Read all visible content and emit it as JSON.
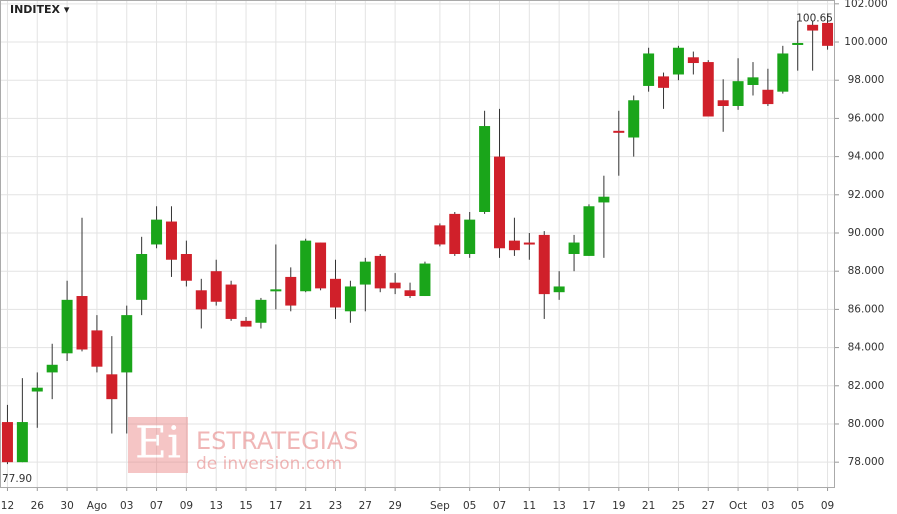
{
  "chart_data": {
    "type": "candlestick",
    "title": "INDITEX ▾",
    "watermark": {
      "logo": "Ei",
      "line1": "ESTRATEGIAS",
      "line2": "de inversion.com"
    },
    "categories": [
      "12",
      null,
      "26",
      null,
      "30",
      null,
      "Ago",
      null,
      "03",
      null,
      "07",
      null,
      "09",
      null,
      "13",
      null,
      "15",
      null,
      "17",
      null,
      "21",
      null,
      "23",
      null,
      "27",
      null,
      "29",
      null,
      null,
      "Sep",
      null,
      "05",
      null,
      "07",
      null,
      "11",
      null,
      "13",
      null,
      "17",
      null,
      "19",
      null,
      "21",
      null,
      "25",
      null,
      "27",
      null,
      "Oct",
      null,
      "03",
      null,
      "05",
      null,
      "09"
    ],
    "open": [
      80.1,
      78.0,
      81.7,
      82.7,
      83.7,
      86.7,
      84.9,
      82.6,
      82.7,
      86.5,
      89.4,
      90.6,
      88.9,
      87.0,
      88.0,
      87.3,
      85.4,
      85.3,
      86.95,
      87.7,
      86.95,
      89.5,
      87.6,
      85.9,
      87.3,
      88.8,
      87.4,
      87.0,
      86.7,
      90.4,
      91.0,
      88.9,
      91.1,
      94.0,
      89.6,
      89.5,
      89.9,
      86.9,
      88.9,
      88.8,
      91.6,
      95.35,
      95.0,
      97.7,
      98.2,
      98.3,
      99.2,
      98.95,
      96.95,
      96.65,
      97.75,
      97.5,
      97.4,
      99.85,
      100.9,
      101.0
    ],
    "high": [
      81.0,
      82.4,
      82.7,
      84.2,
      87.5,
      90.8,
      85.7,
      84.6,
      86.2,
      89.8,
      91.4,
      91.4,
      89.6,
      87.6,
      88.6,
      87.5,
      85.6,
      86.6,
      89.4,
      88.2,
      89.7,
      89.5,
      88.6,
      87.5,
      88.7,
      88.9,
      87.9,
      87.4,
      88.5,
      90.5,
      91.1,
      91.1,
      96.4,
      96.5,
      90.8,
      90.0,
      90.1,
      88.0,
      89.9,
      91.5,
      93.0,
      96.4,
      97.2,
      99.7,
      98.4,
      99.8,
      99.5,
      99.05,
      98.05,
      99.15,
      98.95,
      98.6,
      99.8,
      101.1,
      101.1,
      101.5
    ],
    "low": [
      77.9,
      78.0,
      79.8,
      81.3,
      83.3,
      83.8,
      82.7,
      79.5,
      79.5,
      85.7,
      89.2,
      87.7,
      87.2,
      85.0,
      86.2,
      85.4,
      85.1,
      85.0,
      86.0,
      85.9,
      86.9,
      87.0,
      85.5,
      85.3,
      85.9,
      86.9,
      86.8,
      86.6,
      86.7,
      89.3,
      88.8,
      88.7,
      91.0,
      88.7,
      88.8,
      88.6,
      85.5,
      86.5,
      88.0,
      88.8,
      88.7,
      93.0,
      94.0,
      97.4,
      96.5,
      98.0,
      98.3,
      96.1,
      95.3,
      96.45,
      97.2,
      96.65,
      97.3,
      98.5,
      98.5,
      99.6
    ],
    "close": [
      78.0,
      80.1,
      81.9,
      83.1,
      86.5,
      83.9,
      83.0,
      81.3,
      85.7,
      88.9,
      90.7,
      88.6,
      87.5,
      86.0,
      86.4,
      85.5,
      85.1,
      86.5,
      87.05,
      86.2,
      89.6,
      87.1,
      86.1,
      87.2,
      88.5,
      87.1,
      87.1,
      86.7,
      88.4,
      89.4,
      88.9,
      90.7,
      95.6,
      89.2,
      89.1,
      89.45,
      86.8,
      87.2,
      89.5,
      91.4,
      91.9,
      95.3,
      96.95,
      99.4,
      97.6,
      99.7,
      98.9,
      96.1,
      96.65,
      97.95,
      98.15,
      96.75,
      99.4,
      99.95,
      100.6,
      99.8
    ],
    "up_color": "#1aa51a",
    "down_color": "#d0202a",
    "ylim": [
      76.7,
      102.2
    ],
    "yticks": [
      {
        "value": 78,
        "label": "78.000"
      },
      {
        "value": 80,
        "label": "80.000"
      },
      {
        "value": 82,
        "label": "82.000"
      },
      {
        "value": 84,
        "label": "84.000"
      },
      {
        "value": 86,
        "label": "86.000"
      },
      {
        "value": 88,
        "label": "88.000"
      },
      {
        "value": 90,
        "label": "90.000"
      },
      {
        "value": 92,
        "label": "92.000"
      },
      {
        "value": 94,
        "label": "94.000"
      },
      {
        "value": 96,
        "label": "96.000"
      },
      {
        "value": 98,
        "label": "98.000"
      },
      {
        "value": 100,
        "label": "100.000"
      },
      {
        "value": 102,
        "label": "102.000"
      }
    ],
    "annotations": [
      {
        "value": 100.65,
        "label": "100.65"
      },
      {
        "value": 77.9,
        "label": "77.90"
      }
    ],
    "grid": true
  }
}
